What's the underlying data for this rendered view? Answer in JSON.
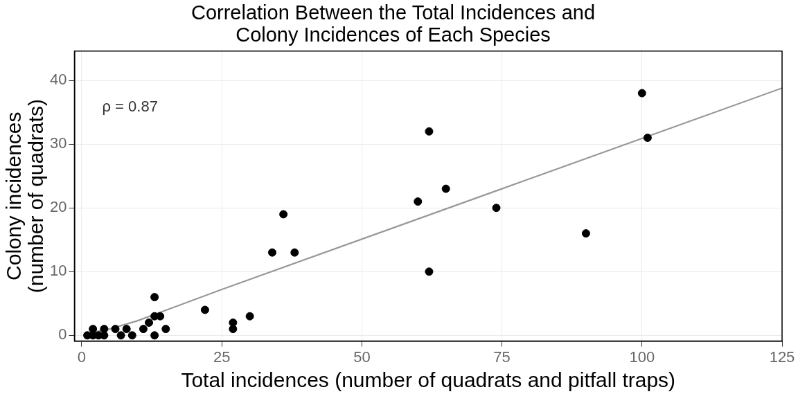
{
  "chart_data": {
    "type": "scatter",
    "title": "Correlation Between the Total Incidences and\nColony Incidences of Each Species",
    "xlabel": "Total incidences (number of quadrats and pitfall traps)",
    "ylabel": "Colony incidences\n(number of quadrats)",
    "annotations": [
      "ρ = 0.87"
    ],
    "xlim": [
      -1.3,
      125
    ],
    "xticks": [
      0,
      25,
      50,
      75,
      100,
      125
    ],
    "ylim": [
      -0.9,
      44.6
    ],
    "yticks": [
      0,
      10,
      20,
      30,
      40
    ],
    "grid": true,
    "marker": "circle",
    "series": [
      {
        "color": "#000000",
        "x": [
          1,
          2,
          2,
          3,
          4,
          4,
          6,
          7,
          8,
          9,
          11,
          12,
          13,
          13,
          13,
          14,
          15,
          22,
          27,
          27,
          30,
          34,
          36,
          38,
          60,
          62,
          62,
          65,
          74,
          90,
          100,
          101
        ],
        "values": [
          0,
          0,
          1,
          0,
          0,
          1,
          1,
          0,
          1,
          0,
          1,
          2,
          3,
          6,
          0,
          3,
          1,
          4,
          2,
          1,
          3,
          13,
          19,
          13,
          21,
          32,
          10,
          23,
          20,
          16,
          38,
          31
        ]
      },
      {
        "type": "line",
        "color": "#999999",
        "marker": "none",
        "x": [
          1,
          5,
          10,
          25,
          75,
          125
        ],
        "values": [
          0.3,
          1,
          2.3,
          7.2,
          23,
          38.8
        ]
      }
    ]
  }
}
